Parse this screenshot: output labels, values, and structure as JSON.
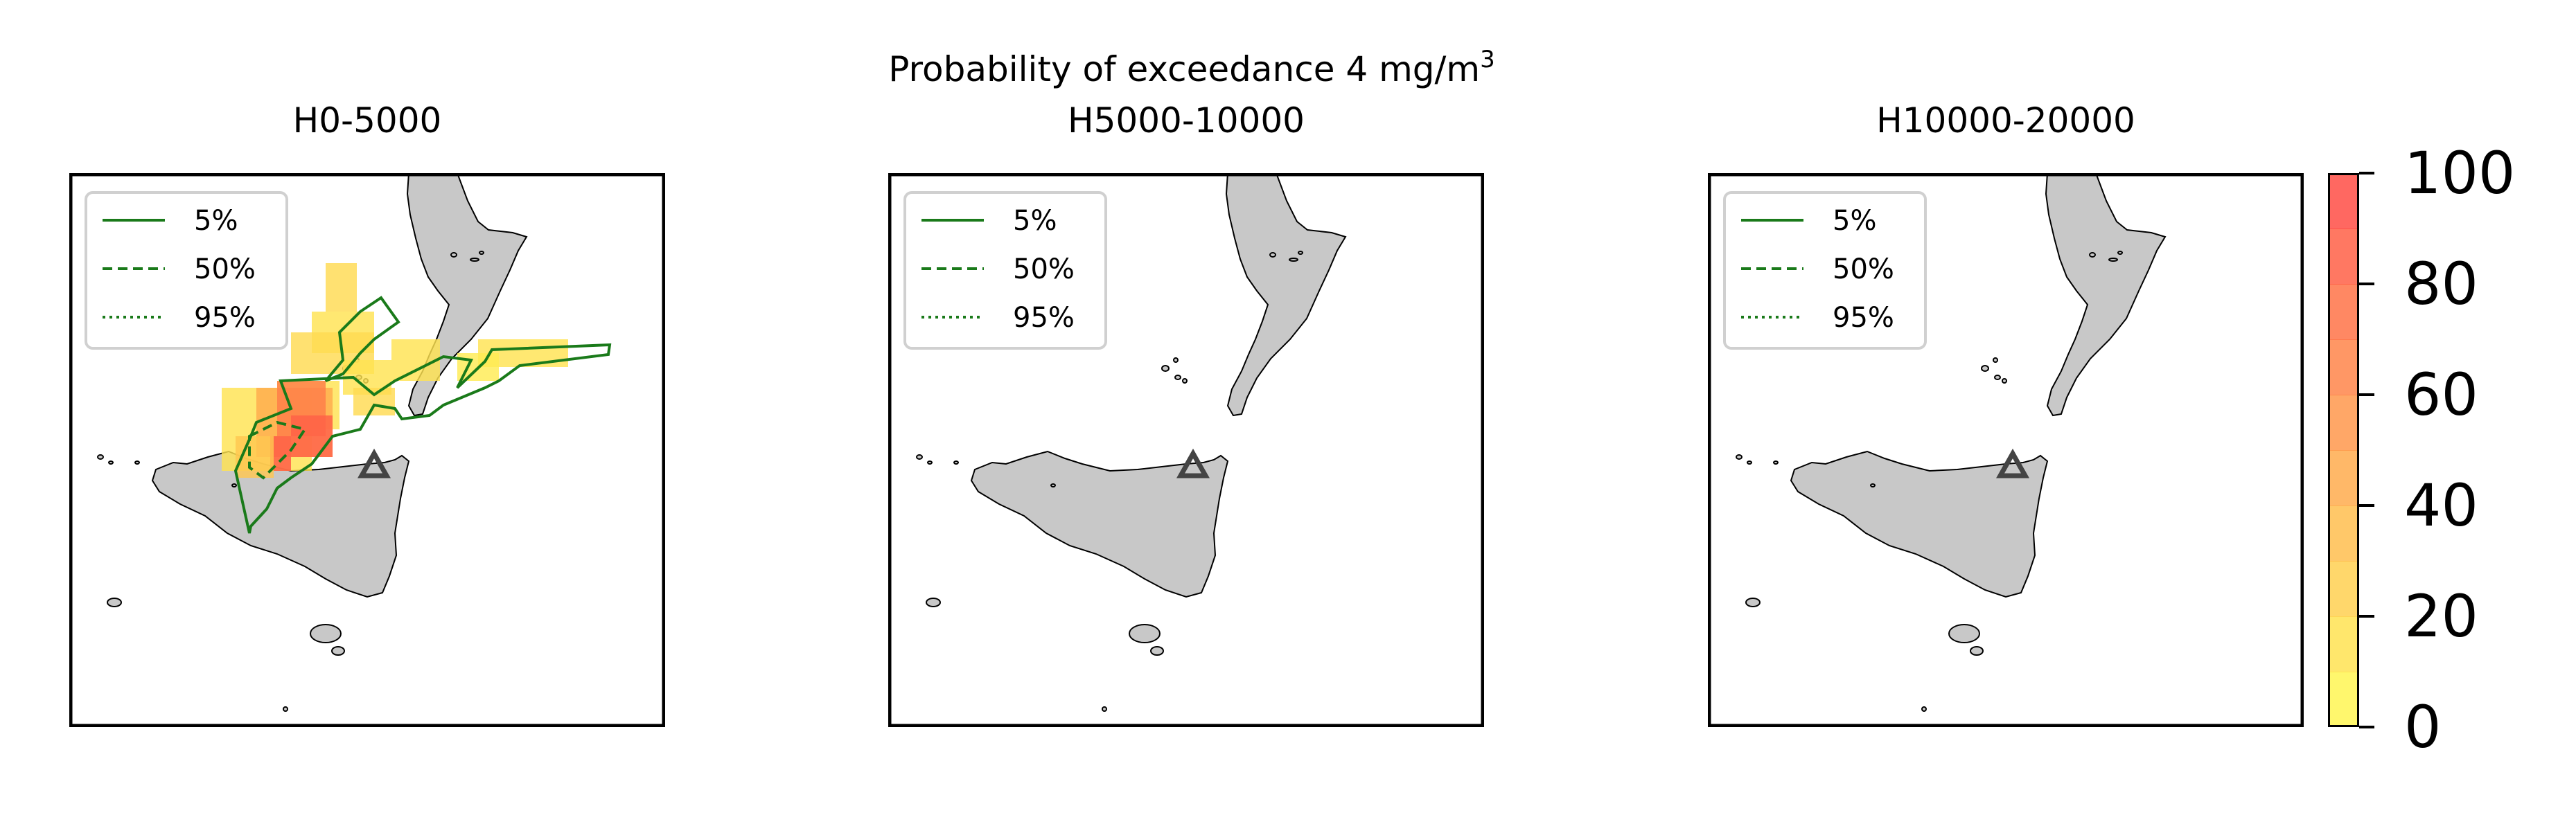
{
  "chart_data": {
    "type": "heatmap",
    "title": "Probability of exceedance 4 mg/m",
    "title_superscript": "3",
    "panels": [
      {
        "name": "H0-5000",
        "has_data": true
      },
      {
        "name": "H5000-10000",
        "has_data": false
      },
      {
        "name": "H10000-20000",
        "has_data": false
      }
    ],
    "legend": {
      "placement": "upper-left",
      "entries": [
        {
          "label": "5%",
          "style": "solid"
        },
        {
          "label": "50%",
          "style": "dashed"
        },
        {
          "label": "95%",
          "style": "dotted"
        }
      ],
      "line_color": "#1a7a1a"
    },
    "colorbar": {
      "range": [
        0,
        100
      ],
      "ticks": [
        "0",
        "20",
        "40",
        "60",
        "80",
        "100"
      ],
      "levels": [
        0,
        10,
        20,
        30,
        40,
        50,
        60,
        70,
        80,
        90,
        100
      ],
      "colormap": "autumn_r",
      "low_color": "#ffff55",
      "high_color": "#ff4444"
    },
    "source_marker": "triangle",
    "land_color": "#c8c8c8"
  }
}
